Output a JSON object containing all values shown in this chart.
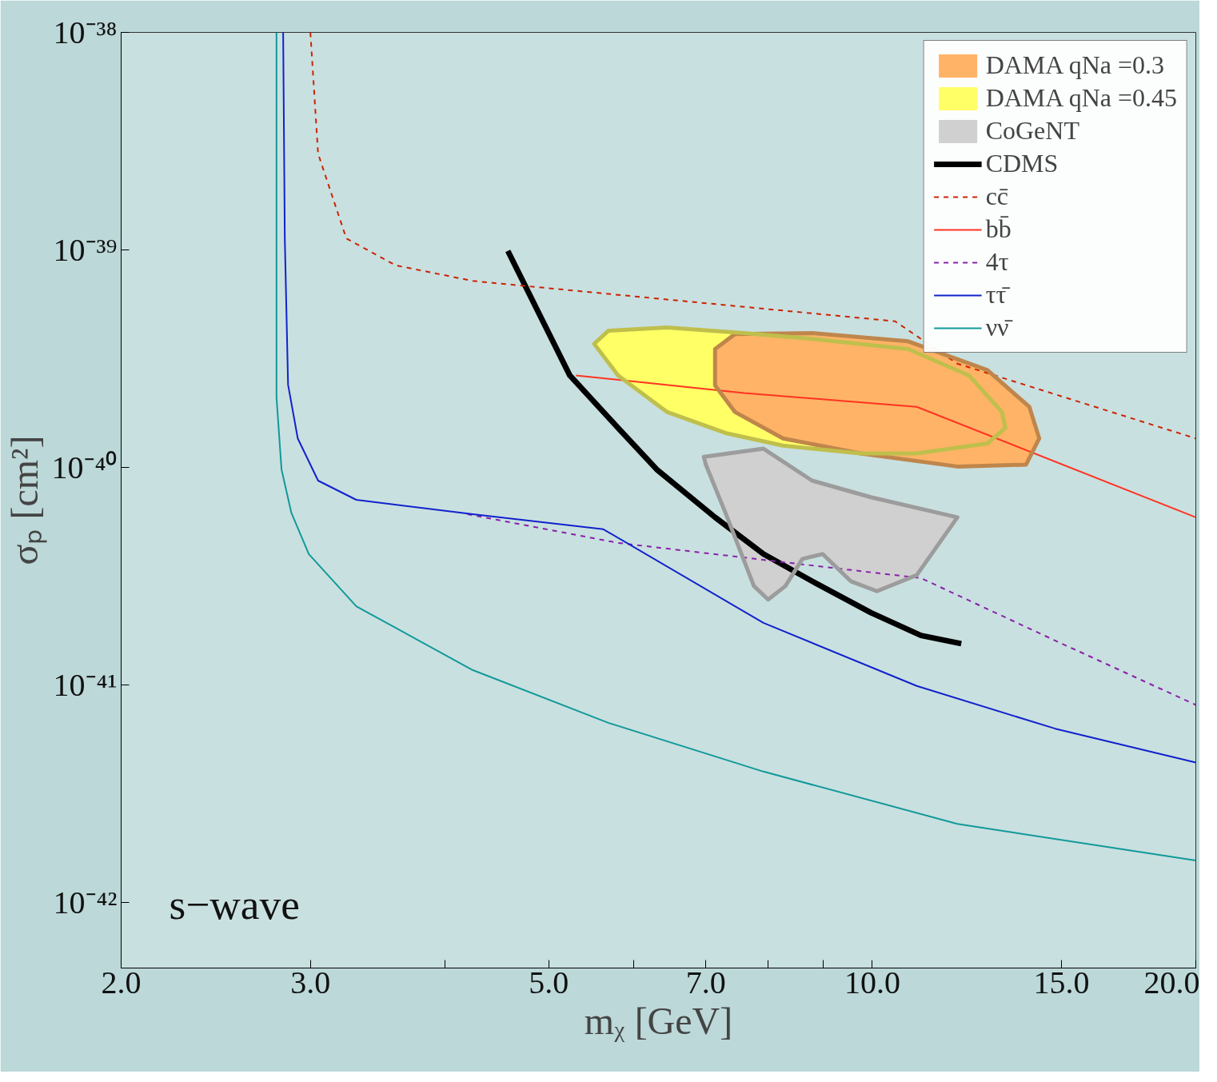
{
  "chart_data": {
    "type": "line",
    "xlabel": "mᵪ [GeV]",
    "ylabel": "σₚ [cm²]",
    "log": "xy",
    "grid": false,
    "legend": "top right",
    "xlim": [
      2,
      20
    ],
    "ylim": [
      5e-43,
      1e-38
    ],
    "xticks": [
      {
        "value": 2,
        "label": "2.0"
      },
      {
        "value": 3,
        "label": "3.0"
      },
      {
        "value": 4,
        "label": null
      },
      {
        "value": 5,
        "label": "5.0"
      },
      {
        "value": 6,
        "label": null
      },
      {
        "value": 7,
        "label": "7.0"
      },
      {
        "value": 8,
        "label": null
      },
      {
        "value": 9,
        "label": null
      },
      {
        "value": 10,
        "label": "10.0"
      },
      {
        "value": 15,
        "label": "15.0"
      },
      {
        "value": 20,
        "label": "20.0"
      }
    ],
    "yticks": [
      {
        "value": 1e-42,
        "label": "10⁻⁴²"
      },
      {
        "value": 1e-41,
        "label": "10⁻⁴¹"
      },
      {
        "value": 1e-40,
        "label": "10⁻⁴⁰"
      },
      {
        "value": 1e-39,
        "label": "10⁻³⁹"
      },
      {
        "value": 1e-38,
        "label": "10⁻³⁸"
      }
    ],
    "annotations": [
      "s−wave"
    ],
    "series": [
      {
        "name": "DAMA qNa =0.3",
        "type": "area",
        "color": "#ffb366",
        "x": [
          7.14,
          7.45,
          8.79,
          10.8,
          12.8,
          14.0,
          14.3,
          13.9,
          12.0,
          9.75,
          8.26,
          7.45,
          7.14
        ],
        "values": [
          3.5e-40,
          4.1e-40,
          4.15e-40,
          3.8e-40,
          2.8e-40,
          1.9e-40,
          1.36e-40,
          1.03e-40,
          1.01e-40,
          1.16e-40,
          1.36e-40,
          1.8e-40,
          2.38e-40
        ]
      },
      {
        "name": "DAMA qNa =0.45",
        "type": "area",
        "color": "#ffff66",
        "x": [
          5.51,
          5.68,
          6.44,
          7.6,
          8.79,
          10.8,
          12.3,
          13.2,
          13.3,
          12.8,
          11.0,
          9.75,
          8.26,
          7.3,
          6.44,
          5.8
        ],
        "values": [
          3.7e-40,
          4.25e-40,
          4.4e-40,
          4.15e-40,
          3.9e-40,
          3.5e-40,
          2.65e-40,
          1.8e-40,
          1.52e-40,
          1.29e-40,
          1.16e-40,
          1.16e-40,
          1.26e-40,
          1.44e-40,
          1.8e-40,
          2.65e-40
        ]
      },
      {
        "name": "CoGeNT",
        "type": "area",
        "color": "#d0d0d0",
        "x": [
          6.97,
          7.92,
          8.79,
          9.97,
          12.0,
          11.0,
          10.1,
          9.55,
          8.99,
          8.61,
          8.3,
          8.0,
          7.76,
          7.3,
          7.0
        ],
        "values": [
          1.12e-40,
          1.22e-40,
          8.7e-41,
          7.3e-41,
          5.9e-41,
          3.2e-41,
          2.7e-41,
          3e-41,
          4e-41,
          3.8e-41,
          2.85e-41,
          2.47e-41,
          2.85e-41,
          6.2e-41,
          1.03e-40
        ]
      },
      {
        "name": "CDMS",
        "color": "#000000",
        "x": [
          4.58,
          5.23,
          5.8,
          6.3,
          7.14,
          7.92,
          8.79,
          9.97,
          11.1,
          12.1
        ],
        "values": [
          9.9e-40,
          2.65e-40,
          1.52e-40,
          9.8e-41,
          5.9e-41,
          4e-41,
          3e-41,
          2.15e-41,
          1.69e-41,
          1.55e-41
        ]
      },
      {
        "name": "cc̄",
        "color": "#cc2200",
        "line_style": "dashed",
        "x": [
          3.0,
          3.05,
          3.24,
          3.6,
          4.25,
          10.5,
          12.0,
          20.0
        ],
        "values": [
          1e-38,
          2.77e-39,
          1.13e-39,
          8.5e-40,
          7.2e-40,
          4.7e-40,
          3e-40,
          1.36e-40
        ]
      },
      {
        "name": "bb̄",
        "color": "#ff3322",
        "x": [
          5.3,
          7.6,
          11.0,
          20.0
        ],
        "values": [
          2.65e-40,
          2.2e-40,
          1.9e-40,
          5.9e-41
        ]
      },
      {
        "name": "4τ",
        "color": "#8822aa",
        "line_style": "dashed",
        "x": [
          4.2,
          5.8,
          11.1,
          14.8,
          20.0
        ],
        "values": [
          6.1e-41,
          4.5e-41,
          3.1e-41,
          1.6e-41,
          8.1e-42
        ]
      },
      {
        "name": "ττ̄",
        "color": "#1122cc",
        "x": [
          2.83,
          2.84,
          2.86,
          2.92,
          3.05,
          3.31,
          4.25,
          5.62,
          7.92,
          11.0,
          14.8,
          20.0
        ],
        "values": [
          1e-38,
          1.13e-39,
          2.4e-40,
          1.36e-40,
          8.7e-41,
          7.1e-41,
          6.1e-41,
          5.2e-41,
          1.93e-41,
          9.9e-42,
          6.3e-42,
          4.4e-42
        ]
      },
      {
        "name": "νν̄",
        "color": "#119999",
        "x": [
          2.79,
          2.79,
          2.82,
          2.88,
          2.99,
          3.31,
          4.25,
          5.68,
          7.92,
          12.0,
          20.0
        ],
        "values": [
          1e-38,
          2.1e-40,
          9.8e-41,
          6.2e-41,
          4e-41,
          2.3e-41,
          1.17e-41,
          6.7e-42,
          4e-42,
          2.3e-42,
          1.56e-42
        ]
      }
    ]
  }
}
